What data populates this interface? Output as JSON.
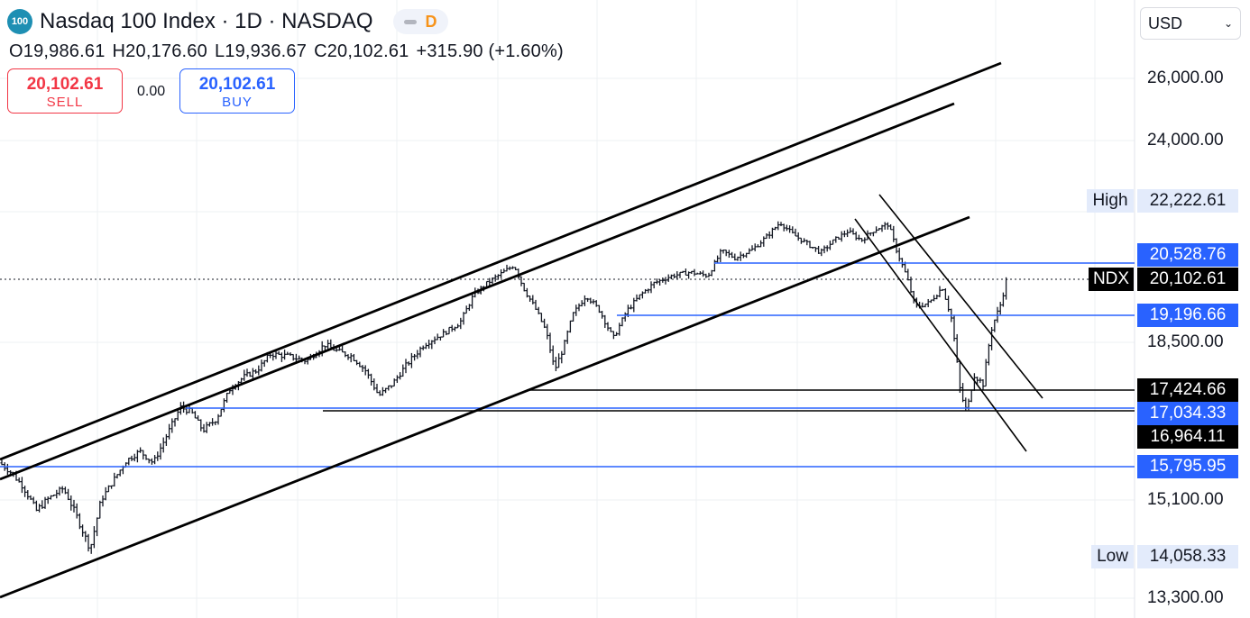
{
  "header": {
    "symbol_badge": "100",
    "title": "Nasdaq 100 Index · 1D · NASDAQ",
    "status_letter": "D",
    "ohlc": {
      "open": "O19,986.61",
      "high": "H20,176.60",
      "low": "L19,936.67",
      "close": "C20,102.61",
      "change": "+315.90 (+1.60%)"
    }
  },
  "trade": {
    "sell_price": "20,102.61",
    "sell_label": "SELL",
    "spread": "0.00",
    "buy_price": "20,102.61",
    "buy_label": "BUY"
  },
  "currency": "USD",
  "axis": {
    "tick_labels": [
      "26,000.00",
      "24,000.00",
      "18,500.00",
      "15,100.00",
      "13,300.00"
    ]
  },
  "price_tags": {
    "high_label": "High",
    "high_value": "22,222.61",
    "level_1": "20,528.76",
    "symbol_tag": "NDX",
    "last_price": "20,102.61",
    "level_2": "19,196.66",
    "level_3": "17,424.66",
    "level_4": "17,034.33",
    "level_5": "16,964.11",
    "level_6": "15,795.95",
    "low_label": "Low",
    "low_value": "14,058.33"
  },
  "colors": {
    "accent_blue": "#2962ff",
    "sell_red": "#f23645",
    "bar": "#131722"
  },
  "chart_data": {
    "type": "ohlc",
    "title": "Nasdaq 100 Index · 1D · NASDAQ",
    "ylim": [
      13000,
      27000
    ],
    "y_ticks": [
      26000,
      24000,
      18500,
      15100,
      13300
    ],
    "close_path": [
      [
        0,
        15900
      ],
      [
        12,
        15700
      ],
      [
        25,
        15400
      ],
      [
        40,
        14900
      ],
      [
        55,
        15150
      ],
      [
        70,
        15350
      ],
      [
        85,
        14800
      ],
      [
        100,
        14200
      ],
      [
        112,
        15100
      ],
      [
        125,
        15500
      ],
      [
        140,
        15950
      ],
      [
        155,
        16150
      ],
      [
        170,
        15900
      ],
      [
        185,
        16500
      ],
      [
        200,
        17100
      ],
      [
        212,
        17000
      ],
      [
        225,
        16600
      ],
      [
        240,
        16850
      ],
      [
        255,
        17500
      ],
      [
        270,
        17750
      ],
      [
        285,
        17900
      ],
      [
        300,
        18250
      ],
      [
        320,
        18200
      ],
      [
        340,
        18100
      ],
      [
        360,
        18450
      ],
      [
        375,
        18300
      ],
      [
        390,
        18200
      ],
      [
        405,
        17900
      ],
      [
        420,
        17350
      ],
      [
        435,
        17600
      ],
      [
        450,
        18000
      ],
      [
        470,
        18450
      ],
      [
        490,
        18700
      ],
      [
        510,
        19000
      ],
      [
        525,
        19700
      ],
      [
        540,
        20000
      ],
      [
        555,
        20250
      ],
      [
        570,
        20500
      ],
      [
        580,
        19900
      ],
      [
        595,
        19300
      ],
      [
        605,
        18800
      ],
      [
        615,
        17900
      ],
      [
        625,
        18400
      ],
      [
        635,
        19200
      ],
      [
        650,
        19700
      ],
      [
        665,
        19300
      ],
      [
        680,
        18600
      ],
      [
        695,
        19300
      ],
      [
        710,
        19700
      ],
      [
        725,
        20000
      ],
      [
        745,
        20200
      ],
      [
        765,
        20300
      ],
      [
        785,
        20200
      ],
      [
        800,
        20900
      ],
      [
        815,
        20700
      ],
      [
        835,
        20950
      ],
      [
        850,
        21300
      ],
      [
        865,
        21700
      ],
      [
        880,
        21350
      ],
      [
        895,
        21100
      ],
      [
        910,
        20850
      ],
      [
        925,
        21200
      ],
      [
        940,
        21450
      ],
      [
        955,
        21200
      ],
      [
        970,
        21500
      ],
      [
        985,
        21650
      ],
      [
        995,
        20850
      ],
      [
        1005,
        20200
      ],
      [
        1015,
        19400
      ],
      [
        1030,
        19500
      ],
      [
        1045,
        19900
      ],
      [
        1055,
        19100
      ],
      [
        1065,
        17400
      ],
      [
        1072,
        17000
      ],
      [
        1080,
        17800
      ],
      [
        1090,
        17600
      ],
      [
        1100,
        18900
      ],
      [
        1110,
        19500
      ],
      [
        1116,
        20102.61
      ]
    ],
    "horizontal_levels": [
      20528.76,
      19196.66,
      17424.66,
      17034.33,
      16964.11,
      15795.95
    ],
    "last_price": 20102.61,
    "high": 22222.61,
    "low": 14058.33
  }
}
